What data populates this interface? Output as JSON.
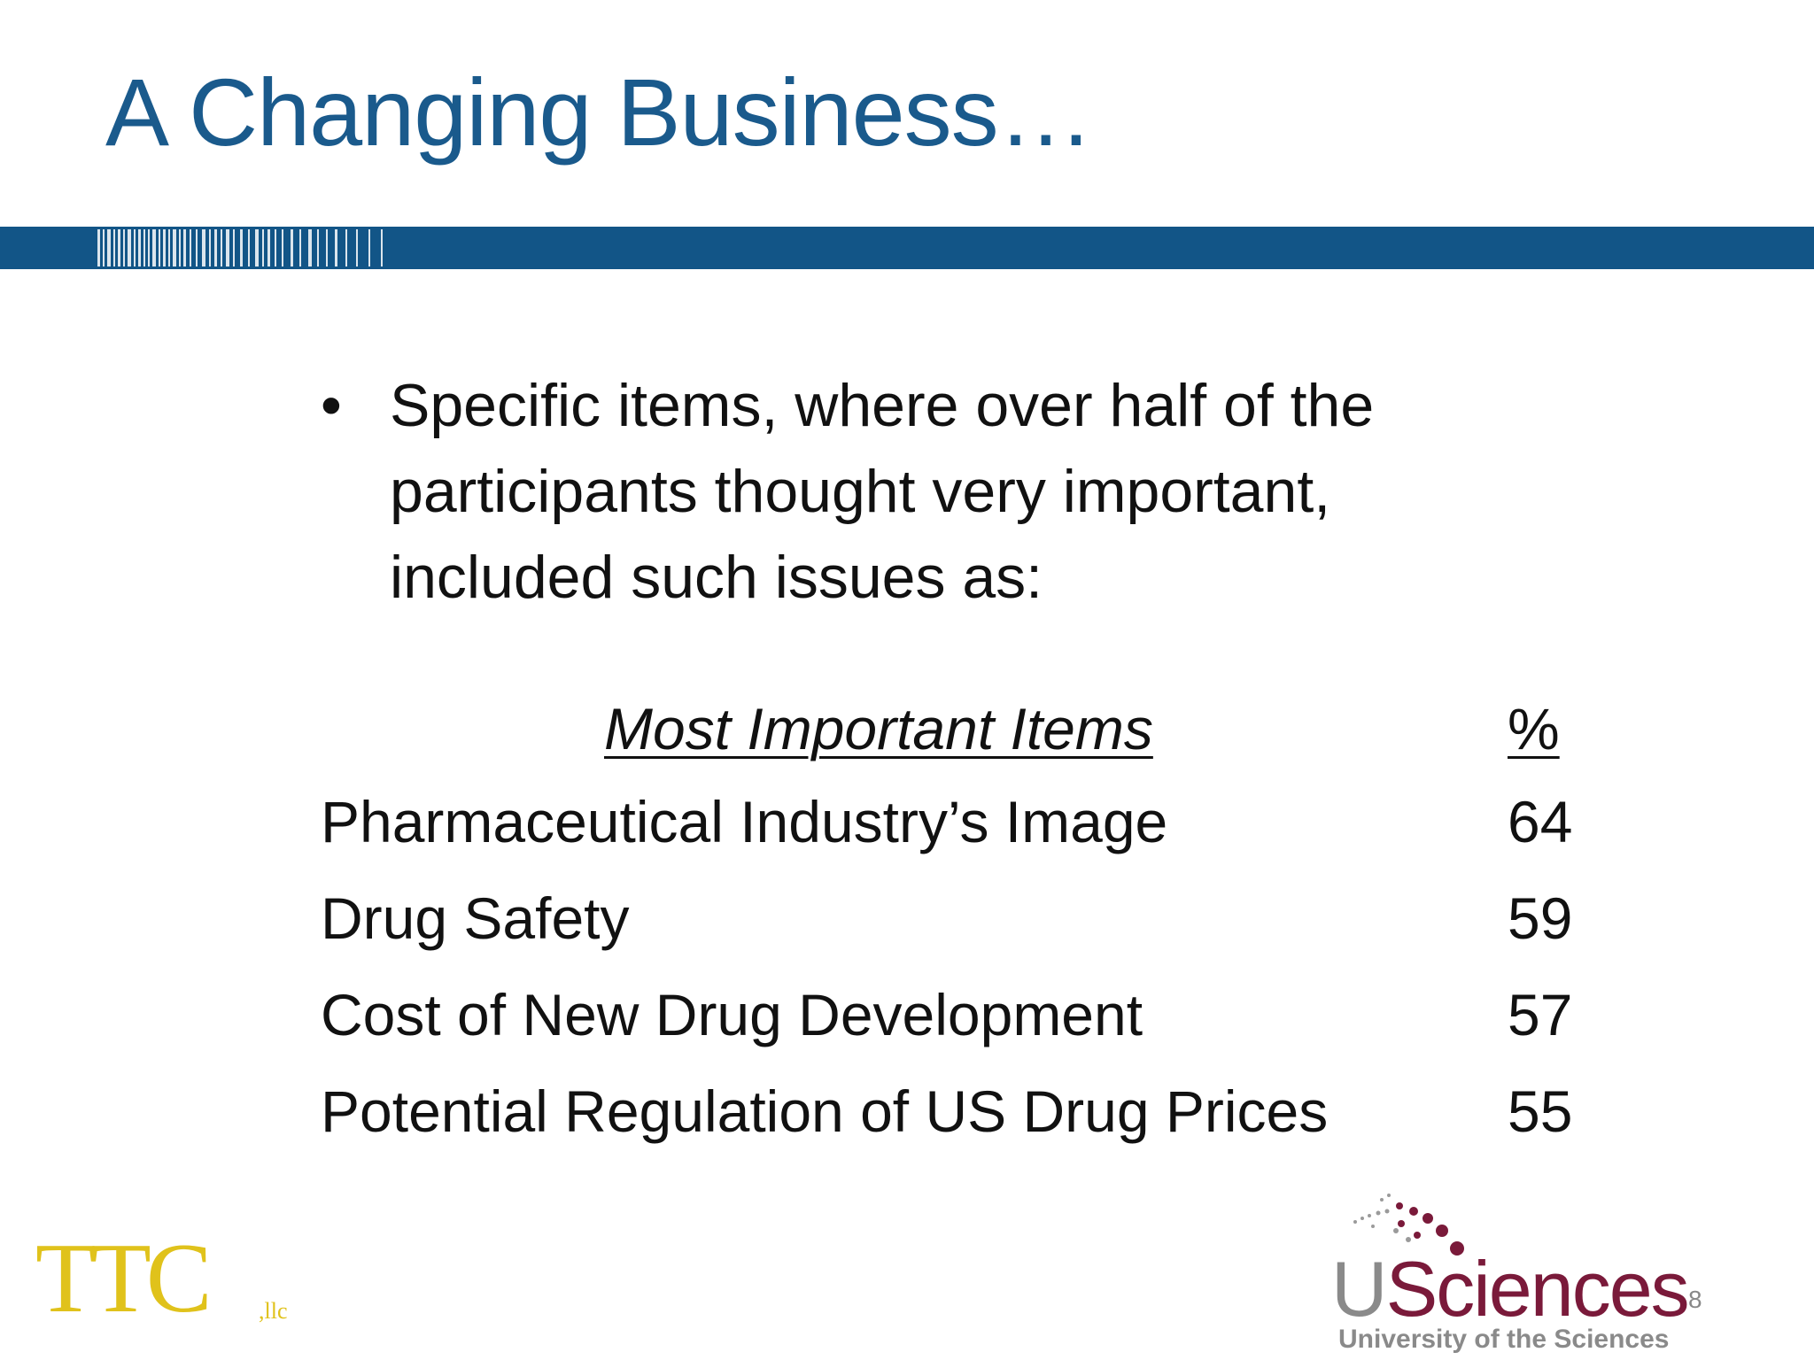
{
  "slide": {
    "title": "A Changing Business…",
    "bullet_symbol": "•",
    "bullet_text": "Specific items, where over half of the participants thought very important, included such issues as:",
    "table": {
      "header_items": "Most Important Items",
      "header_pct": "%",
      "rows": [
        {
          "label": "Pharmaceutical Industry’s Image",
          "value": "64"
        },
        {
          "label": "Drug Safety",
          "value": "59"
        },
        {
          "label": "Cost of New Drug Development",
          "value": "57"
        },
        {
          "label": "Potential Regulation of US Drug Prices",
          "value": "55"
        }
      ]
    },
    "page_number": "8"
  },
  "logos": {
    "ttc": {
      "text": "TTC",
      "suffix": ",llc"
    },
    "usciences": {
      "u": "U",
      "rest": "Sciences",
      "tagline": "University of the Sciences"
    }
  },
  "colors": {
    "title": "#1a5a8c",
    "band": "#125587",
    "ttc_gold": "#e0c21b",
    "usciences_maroon": "#7a1a3a",
    "usciences_gray": "#8a8a8a"
  }
}
